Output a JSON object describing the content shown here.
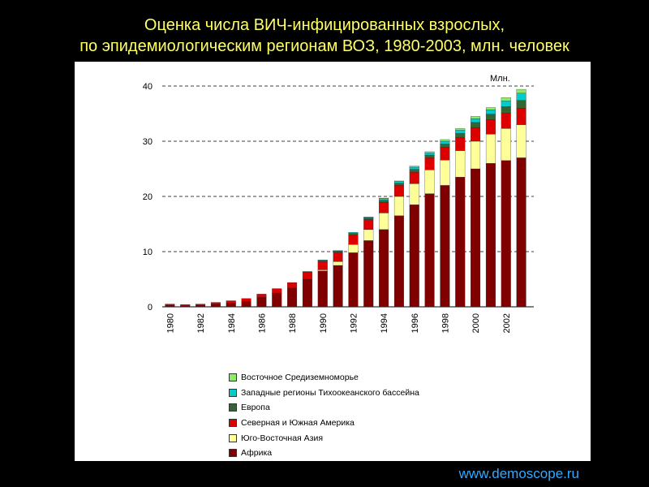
{
  "slide": {
    "title_line1": "Оценка числа ВИЧ-инфицированных взрослых,",
    "title_line2": "по эпидемиологическим регионам ВОЗ, 1980-2003, млн. человек",
    "footer": "www.demoscope.ru"
  },
  "chart_data": {
    "type": "bar",
    "stacked": true,
    "unit_label": "Млн.",
    "ylim": [
      0,
      40
    ],
    "yticks": [
      0,
      10,
      20,
      30,
      40
    ],
    "grid": "dashed horizontal",
    "legend_position": "bottom",
    "categories": [
      "1980",
      "1981",
      "1982",
      "1983",
      "1984",
      "1985",
      "1986",
      "1987",
      "1988",
      "1989",
      "1990",
      "1991",
      "1992",
      "1993",
      "1994",
      "1995",
      "1996",
      "1997",
      "1998",
      "1999",
      "2000",
      "2001",
      "2002",
      "2003"
    ],
    "xtick_labels": [
      "1980",
      "",
      "1982",
      "",
      "1984",
      "",
      "1986",
      "",
      "1988",
      "",
      "1990",
      "",
      "1992",
      "",
      "1994",
      "",
      "1996",
      "",
      "1998",
      "",
      "2000",
      "",
      "2002",
      ""
    ],
    "series": [
      {
        "name": "Африка",
        "color": "#800000",
        "values": [
          0.3,
          0.2,
          0.3,
          0.5,
          0.7,
          1.0,
          1.7,
          2.5,
          3.4,
          5.0,
          6.5,
          7.5,
          9.8,
          12.0,
          14.0,
          16.5,
          18.5,
          20.5,
          22.0,
          23.5,
          25.0,
          26.0,
          26.5,
          27.0
        ]
      },
      {
        "name": "Юго-Восточная Азия",
        "color": "#ffff99",
        "values": [
          0,
          0,
          0,
          0,
          0,
          0,
          0,
          0,
          0,
          0,
          0.2,
          0.7,
          1.5,
          2.0,
          3.0,
          3.5,
          3.8,
          4.3,
          4.6,
          4.8,
          5.0,
          5.3,
          5.8,
          6.0
        ]
      },
      {
        "name": "Северная и Южная Америка",
        "color": "#dd0000",
        "values": [
          0.2,
          0.2,
          0.2,
          0.3,
          0.4,
          0.5,
          0.6,
          0.8,
          1.0,
          1.3,
          1.5,
          1.7,
          1.7,
          1.8,
          1.9,
          2.0,
          2.1,
          2.2,
          2.3,
          2.4,
          2.5,
          2.6,
          2.8,
          3.0
        ]
      },
      {
        "name": "Европа",
        "color": "#336633",
        "values": [
          0,
          0,
          0,
          0,
          0,
          0,
          0,
          0,
          0,
          0.1,
          0.2,
          0.2,
          0.3,
          0.3,
          0.4,
          0.4,
          0.5,
          0.5,
          0.6,
          0.7,
          0.9,
          1.0,
          1.2,
          1.4
        ]
      },
      {
        "name": "Западные регионы Тихоокеанского бассейна",
        "color": "#00cccc",
        "values": [
          0,
          0,
          0,
          0,
          0,
          0,
          0,
          0,
          0,
          0,
          0.1,
          0.1,
          0.2,
          0.2,
          0.3,
          0.3,
          0.4,
          0.4,
          0.5,
          0.6,
          0.7,
          0.8,
          1.0,
          1.3
        ]
      },
      {
        "name": "Восточное Средиземноморье",
        "color": "#88ee66",
        "values": [
          0,
          0,
          0,
          0,
          0,
          0,
          0,
          0,
          0,
          0,
          0,
          0,
          0,
          0,
          0.1,
          0.1,
          0.2,
          0.2,
          0.3,
          0.3,
          0.4,
          0.4,
          0.6,
          0.7
        ]
      }
    ],
    "legend_order": [
      5,
      4,
      3,
      2,
      1,
      0
    ]
  }
}
